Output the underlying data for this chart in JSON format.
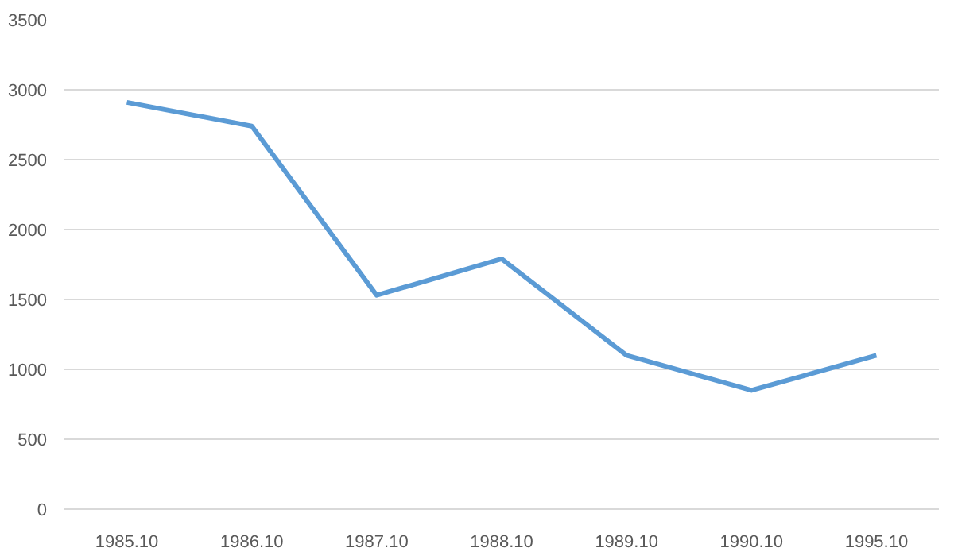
{
  "chart_data": {
    "type": "line",
    "categories": [
      "1985.10",
      "1986.10",
      "1987.10",
      "1988.10",
      "1989.10",
      "1990.10",
      "1995.10"
    ],
    "series": [
      {
        "color": "#5b9bd5",
        "values": [
          2910,
          2740,
          1530,
          1790,
          1100,
          850,
          1100
        ]
      }
    ],
    "ylim": [
      0,
      3500
    ],
    "yticks": [
      0,
      500,
      1000,
      1500,
      2000,
      2500,
      3000,
      3500
    ],
    "grid": "y",
    "marker": "none",
    "line_style": "solid"
  }
}
